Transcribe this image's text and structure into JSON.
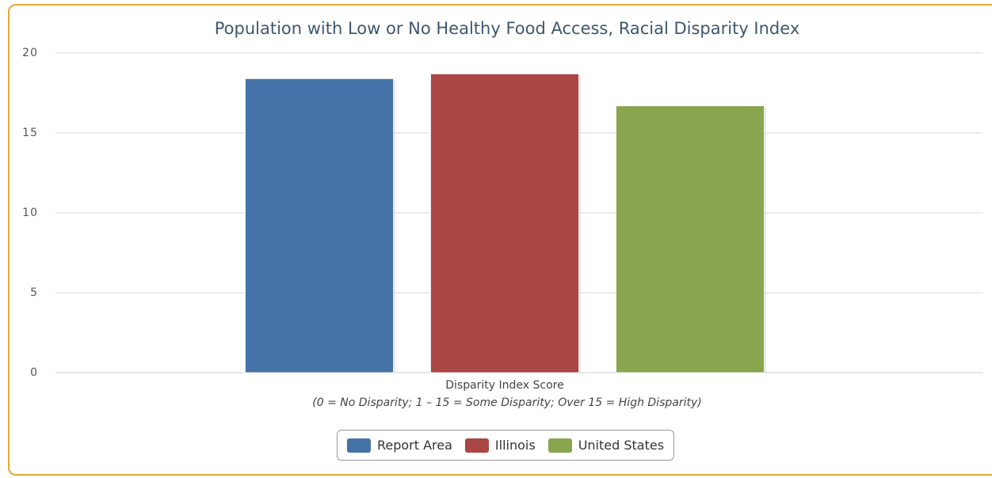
{
  "chart_data": {
    "type": "bar",
    "title": "Population with Low or No Healthy Food Access, Racial Disparity Index",
    "categories": [
      "Disparity Index Score"
    ],
    "xlabel": "(0 = No Disparity; 1 – 15 = Some Disparity; Over 15 = High Disparity)",
    "series": [
      {
        "name": "Report Area",
        "color": "#4572a7",
        "values": [
          18.4
        ]
      },
      {
        "name": "Illinois",
        "color": "#aa4643",
        "values": [
          18.7
        ]
      },
      {
        "name": "United States",
        "color": "#89a54e",
        "values": [
          16.7
        ]
      }
    ],
    "ylim": [
      0,
      20
    ],
    "yticks": [
      0,
      5,
      10,
      15,
      20
    ],
    "grid": true,
    "legend": "bottom"
  }
}
